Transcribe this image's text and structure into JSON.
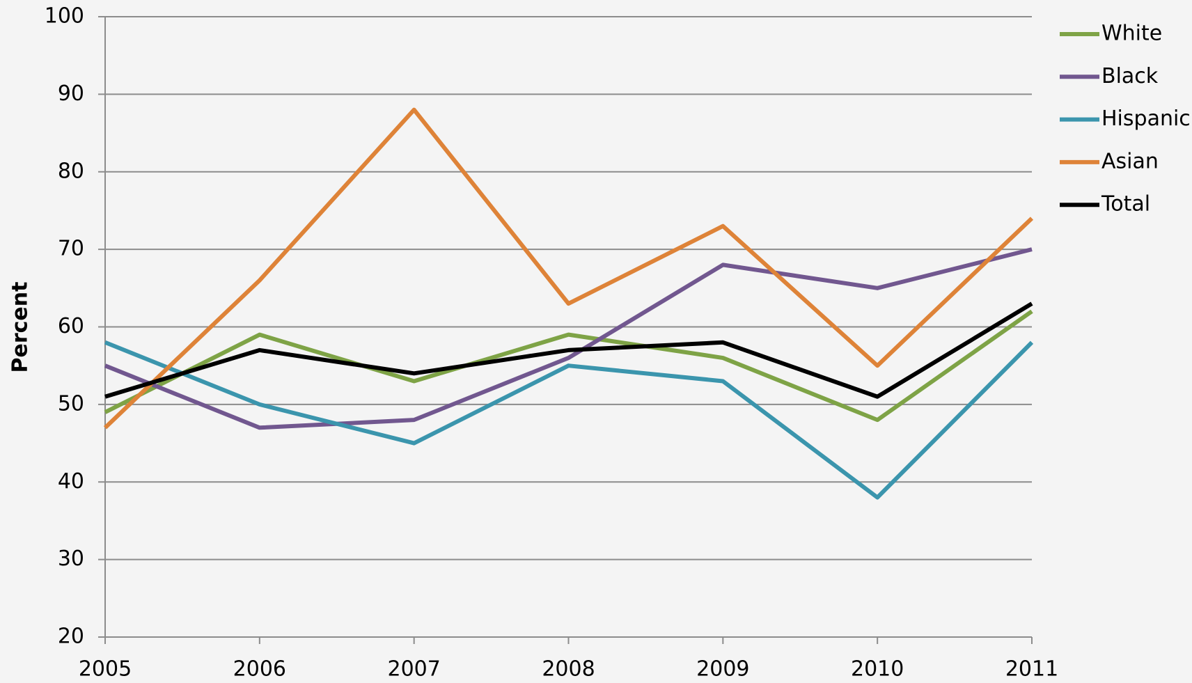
{
  "chart_data": {
    "type": "line",
    "y_label": "Percent",
    "x": [
      2005,
      2006,
      2007,
      2008,
      2009,
      2010,
      2011
    ],
    "xlim": [
      2005,
      2011
    ],
    "xticks": [
      2005,
      2006,
      2007,
      2008,
      2009,
      2010,
      2011
    ],
    "ylim": [
      20,
      100
    ],
    "yticks": [
      20,
      30,
      40,
      50,
      60,
      70,
      80,
      90,
      100
    ],
    "grid": true,
    "legend": "right",
    "series": [
      {
        "name": "White",
        "color": "#7ea346",
        "values": [
          49,
          59,
          53,
          59,
          56,
          48,
          62
        ]
      },
      {
        "name": "Black",
        "color": "#71578f",
        "values": [
          55,
          47,
          48,
          56,
          68,
          65,
          70
        ]
      },
      {
        "name": "Hispanic",
        "color": "#3b95ad",
        "values": [
          58,
          50,
          45,
          55,
          53,
          38,
          58
        ]
      },
      {
        "name": "Asian",
        "color": "#de8338",
        "values": [
          47,
          66,
          88,
          63,
          73,
          55,
          74
        ]
      },
      {
        "name": "Total",
        "color": "#000000",
        "values": [
          51,
          57,
          54,
          57,
          58,
          51,
          63
        ]
      }
    ]
  }
}
